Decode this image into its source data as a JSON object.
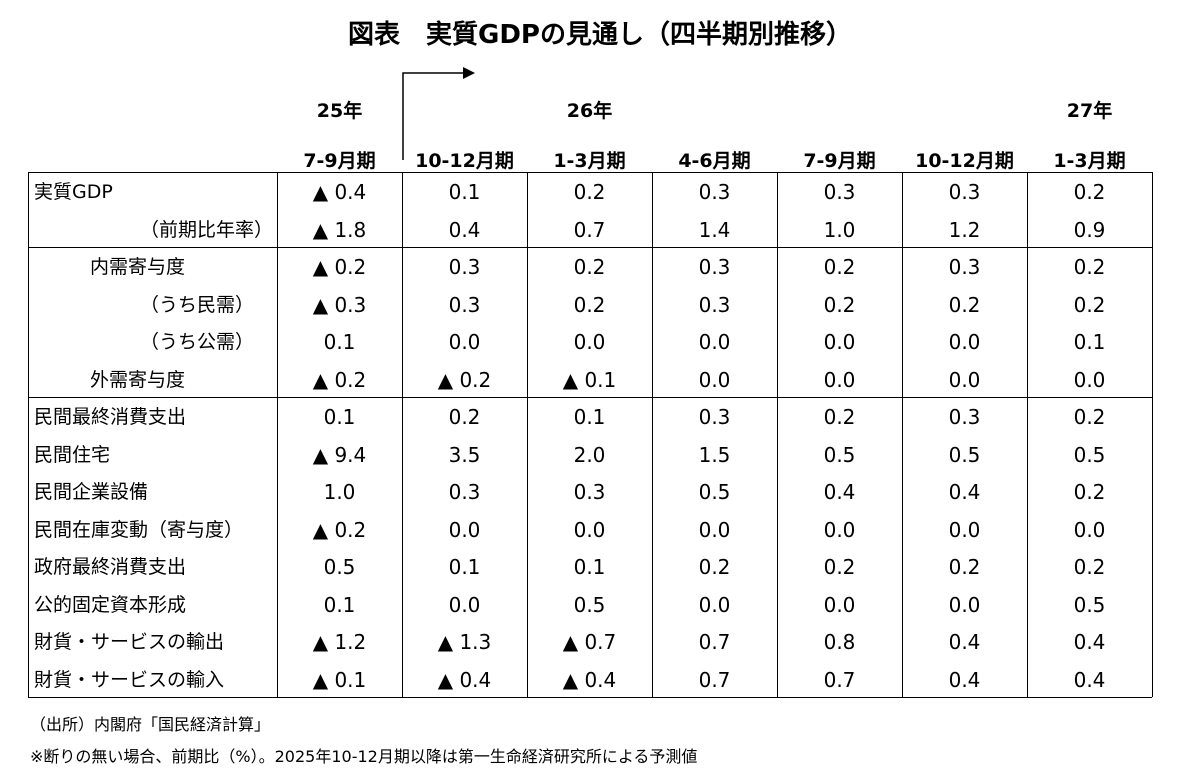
{
  "title": "図表　実質GDPの見通し（四半期別推移）",
  "year_labels": [
    "25年",
    "26年",
    "27年"
  ],
  "columns": [
    "7-9月期",
    "10-12月期",
    "1-3月期",
    "4-6月期",
    "7-9月期",
    "10-12月期",
    "1-3月期"
  ],
  "groups": [
    {
      "rows": [
        {
          "label": "実質GDP",
          "values": [
            "▲ 0.4",
            "0.1",
            "0.2",
            "0.3",
            "0.3",
            "0.3",
            "0.2"
          ]
        },
        {
          "label": "（前期比年率）",
          "values": [
            "▲ 1.8",
            "0.4",
            "0.7",
            "1.4",
            "1.0",
            "1.2",
            "0.9"
          ]
        }
      ]
    },
    {
      "rows": [
        {
          "label": "内需寄与度",
          "values": [
            "▲ 0.2",
            "0.3",
            "0.2",
            "0.3",
            "0.2",
            "0.3",
            "0.2"
          ]
        },
        {
          "label": "（うち民需）",
          "values": [
            "▲ 0.3",
            "0.3",
            "0.2",
            "0.3",
            "0.2",
            "0.2",
            "0.2"
          ]
        },
        {
          "label": "（うち公需）",
          "values": [
            "0.1",
            "0.0",
            "0.0",
            "0.0",
            "0.0",
            "0.0",
            "0.1"
          ]
        },
        {
          "label": "外需寄与度",
          "values": [
            "▲ 0.2",
            "▲ 0.2",
            "▲ 0.1",
            "0.0",
            "0.0",
            "0.0",
            "0.0"
          ]
        }
      ]
    },
    {
      "rows": [
        {
          "label": "民間最終消費支出",
          "values": [
            "0.1",
            "0.2",
            "0.1",
            "0.3",
            "0.2",
            "0.3",
            "0.2"
          ]
        },
        {
          "label": "民間住宅",
          "values": [
            "▲ 9.4",
            "3.5",
            "2.0",
            "1.5",
            "0.5",
            "0.5",
            "0.5"
          ]
        },
        {
          "label": "民間企業設備",
          "values": [
            "1.0",
            "0.3",
            "0.3",
            "0.5",
            "0.4",
            "0.4",
            "0.2"
          ]
        },
        {
          "label": "民間在庫変動（寄与度）",
          "values": [
            "▲ 0.2",
            "0.0",
            "0.0",
            "0.0",
            "0.0",
            "0.0",
            "0.0"
          ]
        },
        {
          "label": "政府最終消費支出",
          "values": [
            "0.5",
            "0.1",
            "0.1",
            "0.2",
            "0.2",
            "0.2",
            "0.2"
          ]
        },
        {
          "label": "公的固定資本形成",
          "values": [
            "0.1",
            "0.0",
            "0.5",
            "0.0",
            "0.0",
            "0.0",
            "0.5"
          ]
        },
        {
          "label": "財貨・サービスの輸出",
          "values": [
            "▲ 1.2",
            "▲ 1.3",
            "▲ 0.7",
            "0.7",
            "0.8",
            "0.4",
            "0.4"
          ]
        },
        {
          "label": "財貨・サービスの輸入",
          "values": [
            "▲ 0.1",
            "▲ 0.4",
            "▲ 0.4",
            "0.7",
            "0.7",
            "0.4",
            "0.4"
          ]
        }
      ]
    }
  ],
  "notes": [
    "（出所）内閣府「国民経済計算」",
    "※断りの無い場合、前期比（%）。2025年10-12月期以降は第一生命経済研究所による予測値"
  ]
}
